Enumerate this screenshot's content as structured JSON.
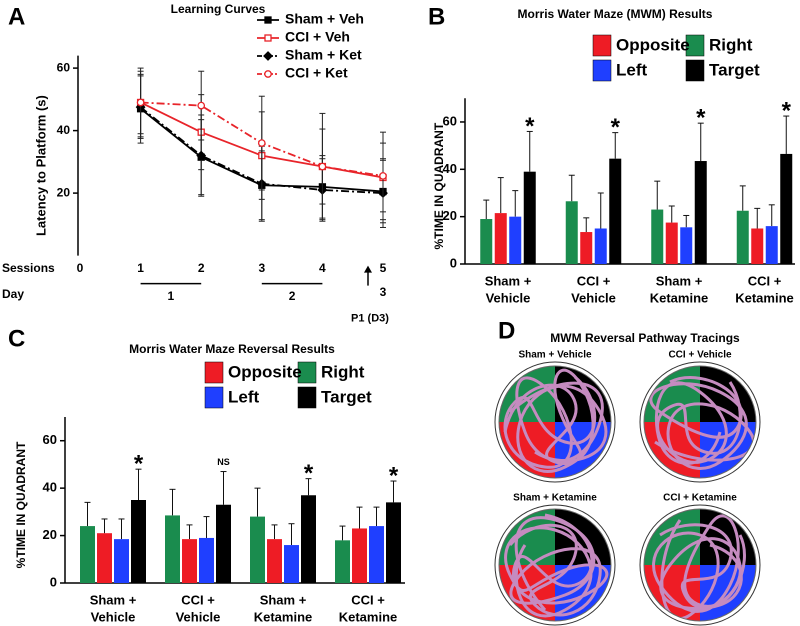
{
  "chart_data": [
    {
      "panel": "A",
      "type": "line",
      "title": "Learning Curves",
      "xlabel": "Sessions",
      "ylabel": "Latency to Platform (s)",
      "x": [
        1,
        2,
        3,
        4,
        5
      ],
      "xlim": [
        0,
        5
      ],
      "xticks": [
        0,
        1,
        2,
        3,
        4,
        5
      ],
      "ylim": [
        0,
        64
      ],
      "yticks": [
        20,
        40,
        60
      ],
      "series": [
        {
          "name": "Sham + Veh",
          "color": "#000000",
          "marker": "square",
          "filled": true,
          "dash": "solid",
          "values": [
            47,
            31.5,
            22.5,
            22,
            20.5
          ],
          "errors": [
            11,
            12,
            11,
            10,
            10
          ]
        },
        {
          "name": "CCI + Veh",
          "color": "#e8242a",
          "marker": "square",
          "filled": false,
          "dash": "solid",
          "values": [
            49,
            39.5,
            32,
            28.5,
            25
          ],
          "errors": [
            10,
            12,
            14,
            12,
            11
          ]
        },
        {
          "name": "Sham + Ket",
          "color": "#000000",
          "marker": "diamond",
          "filled": true,
          "dash": "dashdot",
          "values": [
            47.5,
            32,
            23,
            21,
            20
          ],
          "errors": [
            10,
            13,
            12,
            10,
            11
          ]
        },
        {
          "name": "CCI + Ket",
          "color": "#e8242a",
          "marker": "circle",
          "filled": false,
          "dash": "dashdot",
          "values": [
            49,
            48,
            36,
            28.5,
            25.5
          ],
          "errors": [
            11,
            11,
            15,
            17,
            14
          ]
        }
      ],
      "day_label": "Day",
      "days": [
        {
          "label": "1",
          "sessions": [
            1,
            2
          ]
        },
        {
          "label": "2",
          "sessions": [
            3,
            4
          ]
        },
        {
          "label": "3",
          "sessions": [
            5,
            5
          ]
        }
      ],
      "annotation": {
        "text": "P1 (D3)",
        "x": 5
      }
    },
    {
      "panel": "B",
      "type": "bar",
      "title": "Morris Water Maze (MWM) Results",
      "ylabel": "%TIME IN QUADRANT",
      "categories": [
        [
          "Sham +",
          "Vehicle"
        ],
        [
          "CCI +",
          "Vehicle"
        ],
        [
          "Sham +",
          "Ketamine"
        ],
        [
          "CCI +",
          "Ketamine"
        ]
      ],
      "ylim": [
        0,
        70
      ],
      "yticks": [
        0,
        20,
        40,
        60
      ],
      "series": [
        {
          "name": "Right",
          "color": "#1a8c4e",
          "values": [
            19,
            26.5,
            23,
            22.5
          ],
          "errors": [
            8,
            11,
            12,
            10.5
          ]
        },
        {
          "name": "Opposite",
          "color": "#ee1c25",
          "values": [
            21.5,
            13.5,
            17.5,
            15
          ],
          "errors": [
            15,
            6,
            7,
            8.5
          ]
        },
        {
          "name": "Left",
          "color": "#1f3fff",
          "values": [
            20,
            15,
            15.5,
            16
          ],
          "errors": [
            11,
            15,
            5,
            9
          ]
        },
        {
          "name": "Target",
          "color": "#000000",
          "values": [
            39,
            44.5,
            43.5,
            46.5
          ],
          "errors": [
            17,
            11,
            16,
            16
          ]
        }
      ],
      "annotations": [
        "*",
        "*",
        "*",
        "*"
      ]
    },
    {
      "panel": "C",
      "type": "bar",
      "title": "Morris Water Maze Reversal Results",
      "ylabel": "%TIME IN QUADRANT",
      "categories": [
        [
          "Sham +",
          "Vehicle"
        ],
        [
          "CCI +",
          "Vehicle"
        ],
        [
          "Sham +",
          "Ketamine"
        ],
        [
          "CCI +",
          "Ketamine"
        ]
      ],
      "ylim": [
        0,
        70
      ],
      "yticks": [
        0,
        20,
        40,
        60
      ],
      "series": [
        {
          "name": "Right",
          "color": "#1a8c4e",
          "values": [
            24,
            28.5,
            28,
            18
          ],
          "errors": [
            10,
            11,
            12,
            6
          ]
        },
        {
          "name": "Opposite",
          "color": "#ee1c25",
          "values": [
            21,
            18.5,
            18.5,
            23
          ],
          "errors": [
            6,
            6,
            6,
            9
          ]
        },
        {
          "name": "Left",
          "color": "#1f3fff",
          "values": [
            18.5,
            19,
            16,
            24
          ],
          "errors": [
            8.5,
            9,
            9,
            8
          ]
        },
        {
          "name": "Target",
          "color": "#000000",
          "values": [
            35,
            33,
            37,
            34
          ],
          "errors": [
            13,
            14,
            7,
            9
          ]
        }
      ],
      "annotations": [
        "*",
        "NS",
        "*",
        "*"
      ]
    }
  ],
  "pathway_tracings": {
    "panel": "D",
    "title": "MWM Reversal Pathway Tracings",
    "labels": [
      "Sham + Vehicle",
      "CCI + Vehicle",
      "Sham + Ketamine",
      "CCI + Ketamine"
    ]
  }
}
